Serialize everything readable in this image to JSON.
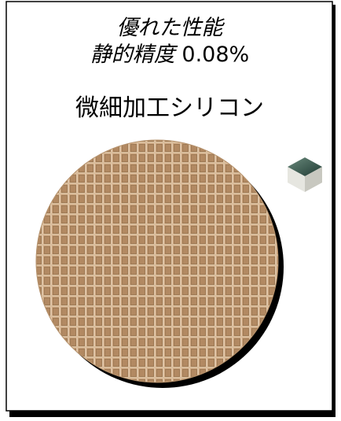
{
  "heading": {
    "line1": "優れた性能",
    "line2_label": "静的精度",
    "line2_value": "0.08%"
  },
  "subtitle": "微細加工シリコン"
}
